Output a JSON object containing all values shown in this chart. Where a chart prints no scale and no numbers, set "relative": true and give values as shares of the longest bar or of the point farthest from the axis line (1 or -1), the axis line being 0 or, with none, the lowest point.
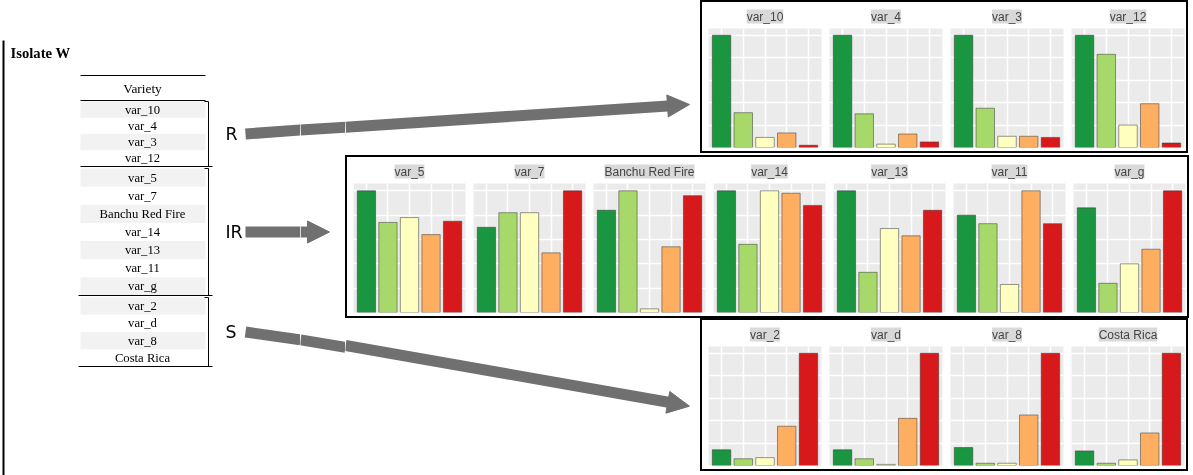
{
  "chart_data": [
    {
      "type": "other",
      "title": "Isolate W",
      "annotations": [
        "Variety",
        "var_10",
        "var_4",
        "var_3",
        "var_12",
        "var_5",
        "var_7",
        "Banchu Red Fire",
        "var_14",
        "var_13",
        "var_11",
        "var_g",
        "var_2",
        "var_d",
        "var_8",
        "Costa Rica",
        "R",
        "IR",
        "S"
      ]
    },
    {
      "type": "bar",
      "title": "var_10",
      "categories": [
        null,
        null,
        null,
        null,
        null
      ],
      "values": [
        1,
        0.31,
        0.09,
        0.13,
        0.02
      ],
      "colors": [
        "#1a9641",
        "#a6d96a",
        "#ffffbf",
        "#fdae61",
        "#d7191c"
      ],
      "relative": true,
      "grid": true,
      "tick_labels": false
    },
    {
      "type": "bar",
      "title": "var_4",
      "categories": [
        null,
        null,
        null,
        null,
        null
      ],
      "values": [
        1,
        0.3,
        0.03,
        0.12,
        0.05
      ],
      "colors": [
        "#1a9641",
        "#a6d96a",
        "#ffffbf",
        "#fdae61",
        "#d7191c"
      ],
      "relative": true,
      "grid": true,
      "tick_labels": false
    },
    {
      "type": "bar",
      "title": "var_3",
      "categories": [
        null,
        null,
        null,
        null,
        null
      ],
      "values": [
        1,
        0.35,
        0.1,
        0.1,
        0.09
      ],
      "colors": [
        "#1a9641",
        "#a6d96a",
        "#ffffbf",
        "#fdae61",
        "#d7191c"
      ],
      "relative": true,
      "grid": true,
      "tick_labels": false
    },
    {
      "type": "bar",
      "title": "var_12",
      "categories": [
        null,
        null,
        null,
        null,
        null
      ],
      "values": [
        1,
        0.83,
        0.2,
        0.39,
        0.04
      ],
      "colors": [
        "#1a9641",
        "#a6d96a",
        "#ffffbf",
        "#fdae61",
        "#d7191c"
      ],
      "relative": true,
      "grid": true,
      "tick_labels": false
    },
    {
      "type": "bar",
      "title": "var_5",
      "categories": [
        null,
        null,
        null,
        null,
        null
      ],
      "values": [
        1,
        0.74,
        0.78,
        0.64,
        0.75
      ],
      "colors": [
        "#1a9641",
        "#a6d96a",
        "#ffffbf",
        "#fdae61",
        "#d7191c"
      ],
      "relative": true,
      "grid": true,
      "tick_labels": false
    },
    {
      "type": "bar",
      "title": "var_7",
      "categories": [
        null,
        null,
        null,
        null,
        null
      ],
      "values": [
        0.7,
        0.82,
        0.82,
        0.49,
        1
      ],
      "colors": [
        "#1a9641",
        "#a6d96a",
        "#ffffbf",
        "#fdae61",
        "#d7191c"
      ],
      "relative": true,
      "grid": true,
      "tick_labels": false
    },
    {
      "type": "bar",
      "title": "Banchu Red Fire",
      "categories": [
        null,
        null,
        null,
        null,
        null
      ],
      "values": [
        0.84,
        1,
        0.03,
        0.54,
        0.96
      ],
      "colors": [
        "#1a9641",
        "#a6d96a",
        "#ffffbf",
        "#fdae61",
        "#d7191c"
      ],
      "relative": true,
      "grid": true,
      "tick_labels": false
    },
    {
      "type": "bar",
      "title": "var_14",
      "categories": [
        null,
        null,
        null,
        null,
        null
      ],
      "values": [
        1,
        0.56,
        1,
        0.98,
        0.88
      ],
      "colors": [
        "#1a9641",
        "#a6d96a",
        "#ffffbf",
        "#fdae61",
        "#d7191c"
      ],
      "relative": true,
      "grid": true,
      "tick_labels": false
    },
    {
      "type": "bar",
      "title": "var_13",
      "categories": [
        null,
        null,
        null,
        null,
        null
      ],
      "values": [
        1,
        0.33,
        0.69,
        0.63,
        0.84
      ],
      "colors": [
        "#1a9641",
        "#a6d96a",
        "#ffffbf",
        "#fdae61",
        "#d7191c"
      ],
      "relative": true,
      "grid": true,
      "tick_labels": false
    },
    {
      "type": "bar",
      "title": "var_11",
      "categories": [
        null,
        null,
        null,
        null,
        null
      ],
      "values": [
        0.8,
        0.73,
        0.23,
        1,
        0.73
      ],
      "colors": [
        "#1a9641",
        "#a6d96a",
        "#ffffbf",
        "#fdae61",
        "#d7191c"
      ],
      "relative": true,
      "grid": true,
      "tick_labels": false
    },
    {
      "type": "bar",
      "title": "var_g",
      "categories": [
        null,
        null,
        null,
        null,
        null
      ],
      "values": [
        0.86,
        0.24,
        0.4,
        0.52,
        1
      ],
      "colors": [
        "#1a9641",
        "#a6d96a",
        "#ffffbf",
        "#fdae61",
        "#d7191c"
      ],
      "relative": true,
      "grid": true,
      "tick_labels": false
    },
    {
      "type": "bar",
      "title": "var_2",
      "categories": [
        null,
        null,
        null,
        null,
        null
      ],
      "values": [
        0.14,
        0.06,
        0.07,
        0.35,
        1
      ],
      "colors": [
        "#1a9641",
        "#a6d96a",
        "#ffffbf",
        "#fdae61",
        "#d7191c"
      ],
      "relative": true,
      "grid": true,
      "tick_labels": false
    },
    {
      "type": "bar",
      "title": "var_d",
      "categories": [
        null,
        null,
        null,
        null,
        null
      ],
      "values": [
        0.14,
        0.06,
        0.01,
        0.42,
        1
      ],
      "colors": [
        "#1a9641",
        "#a6d96a",
        "#ffffbf",
        "#fdae61",
        "#d7191c"
      ],
      "relative": true,
      "grid": true,
      "tick_labels": false
    },
    {
      "type": "bar",
      "title": "var_8",
      "categories": [
        null,
        null,
        null,
        null,
        null
      ],
      "values": [
        0.16,
        0.02,
        0.02,
        0.45,
        1
      ],
      "colors": [
        "#1a9641",
        "#a6d96a",
        "#ffffbf",
        "#fdae61",
        "#d7191c"
      ],
      "relative": true,
      "grid": true,
      "tick_labels": false
    },
    {
      "type": "bar",
      "title": "Costa Rica",
      "categories": [
        null,
        null,
        null,
        null,
        null
      ],
      "values": [
        0.13,
        0.02,
        0.05,
        0.29,
        1
      ],
      "colors": [
        "#1a9641",
        "#a6d96a",
        "#ffffbf",
        "#fdae61",
        "#d7191c"
      ],
      "relative": true,
      "grid": true,
      "tick_labels": false
    }
  ]
}
